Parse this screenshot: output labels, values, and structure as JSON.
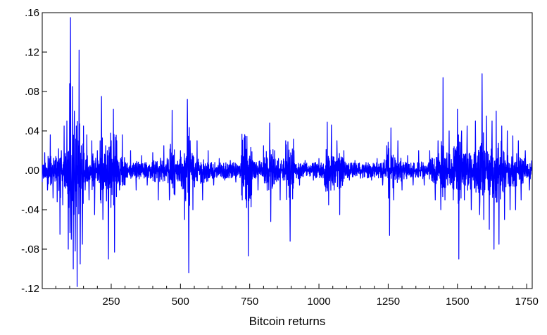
{
  "chart_data": {
    "type": "line",
    "title": "",
    "xlabel": "Bitcoin returns",
    "ylabel": "",
    "xlim": [
      1,
      1770
    ],
    "ylim": [
      -0.12,
      0.16
    ],
    "x_ticks": [
      250,
      500,
      750,
      1000,
      1250,
      1500,
      1750
    ],
    "x_tick_labels": [
      "250",
      "500",
      "750",
      "1000",
      "1250",
      "1500",
      "1750"
    ],
    "y_ticks": [
      -0.12,
      -0.08,
      -0.04,
      0.0,
      0.04,
      0.08,
      0.12,
      0.16
    ],
    "y_tick_labels": [
      "-.12",
      "-.08",
      "-.04",
      ".00",
      ".04",
      ".08",
      ".12",
      ".16"
    ],
    "grid": false,
    "legend": "none",
    "series": [
      {
        "color": "#0000ff",
        "points": [
          [
            1,
            -0.012
          ],
          [
            10,
            0.018
          ],
          [
            20,
            -0.02
          ],
          [
            30,
            0.036
          ],
          [
            40,
            -0.028
          ],
          [
            50,
            0.014
          ],
          [
            55,
            -0.032
          ],
          [
            60,
            0.022
          ],
          [
            65,
            -0.065
          ],
          [
            70,
            0.02
          ],
          [
            75,
            -0.035
          ],
          [
            80,
            0.045
          ],
          [
            85,
            -0.018
          ],
          [
            90,
            0.05
          ],
          [
            95,
            -0.08
          ],
          [
            100,
            0.088
          ],
          [
            103,
            0.155
          ],
          [
            106,
            -0.07
          ],
          [
            110,
            0.085
          ],
          [
            113,
            -0.1
          ],
          [
            117,
            0.06
          ],
          [
            120,
            -0.082
          ],
          [
            124,
            0.045
          ],
          [
            127,
            -0.118
          ],
          [
            130,
            0.03
          ],
          [
            134,
            0.122
          ],
          [
            138,
            -0.095
          ],
          [
            142,
            0.025
          ],
          [
            146,
            -0.075
          ],
          [
            150,
            0.045
          ],
          [
            156,
            -0.02
          ],
          [
            162,
            0.036
          ],
          [
            170,
            -0.03
          ],
          [
            180,
            0.03
          ],
          [
            190,
            -0.045
          ],
          [
            200,
            0.02
          ],
          [
            210,
            0.03
          ],
          [
            215,
            0.075
          ],
          [
            220,
            -0.05
          ],
          [
            230,
            0.025
          ],
          [
            240,
            -0.09
          ],
          [
            250,
            0.03
          ],
          [
            258,
            0.062
          ],
          [
            262,
            -0.083
          ],
          [
            270,
            0.03
          ],
          [
            280,
            -0.02
          ],
          [
            290,
            0.036
          ],
          [
            300,
            -0.015
          ],
          [
            320,
            0.02
          ],
          [
            340,
            -0.02
          ],
          [
            360,
            0.015
          ],
          [
            380,
            -0.015
          ],
          [
            400,
            0.018
          ],
          [
            420,
            -0.03
          ],
          [
            440,
            0.025
          ],
          [
            460,
            -0.03
          ],
          [
            470,
            0.061
          ],
          [
            480,
            -0.025
          ],
          [
            500,
            0.02
          ],
          [
            515,
            -0.05
          ],
          [
            525,
            0.072
          ],
          [
            530,
            -0.104
          ],
          [
            535,
            0.03
          ],
          [
            545,
            -0.04
          ],
          [
            560,
            0.03
          ],
          [
            580,
            -0.03
          ],
          [
            600,
            0.02
          ],
          [
            620,
            -0.015
          ],
          [
            640,
            0.012
          ],
          [
            660,
            -0.01
          ],
          [
            680,
            0.01
          ],
          [
            700,
            -0.012
          ],
          [
            720,
            0.015
          ],
          [
            745,
            -0.087
          ],
          [
            760,
            0.01
          ],
          [
            780,
            -0.02
          ],
          [
            800,
            0.025
          ],
          [
            822,
            0.048
          ],
          [
            826,
            -0.052
          ],
          [
            840,
            0.02
          ],
          [
            860,
            -0.03
          ],
          [
            880,
            0.03
          ],
          [
            896,
            -0.072
          ],
          [
            910,
            0.02
          ],
          [
            930,
            -0.015
          ],
          [
            950,
            0.01
          ],
          [
            980,
            -0.01
          ],
          [
            1000,
            0.012
          ],
          [
            1020,
            -0.015
          ],
          [
            1030,
            0.049
          ],
          [
            1035,
            -0.035
          ],
          [
            1045,
            0.046
          ],
          [
            1055,
            -0.02
          ],
          [
            1065,
            0.03
          ],
          [
            1075,
            -0.045
          ],
          [
            1090,
            0.02
          ],
          [
            1110,
            -0.01
          ],
          [
            1130,
            0.01
          ],
          [
            1150,
            -0.008
          ],
          [
            1170,
            0.008
          ],
          [
            1190,
            -0.01
          ],
          [
            1210,
            0.012
          ],
          [
            1230,
            -0.015
          ],
          [
            1245,
            0.025
          ],
          [
            1255,
            -0.066
          ],
          [
            1260,
            0.043
          ],
          [
            1270,
            -0.03
          ],
          [
            1285,
            0.03
          ],
          [
            1300,
            -0.02
          ],
          [
            1320,
            0.015
          ],
          [
            1340,
            -0.015
          ],
          [
            1360,
            0.02
          ],
          [
            1380,
            -0.015
          ],
          [
            1400,
            0.02
          ],
          [
            1420,
            -0.03
          ],
          [
            1430,
            0.03
          ],
          [
            1440,
            -0.04
          ],
          [
            1448,
            0.094
          ],
          [
            1455,
            -0.03
          ],
          [
            1470,
            0.04
          ],
          [
            1485,
            -0.03
          ],
          [
            1500,
            0.062
          ],
          [
            1505,
            -0.09
          ],
          [
            1515,
            0.04
          ],
          [
            1525,
            -0.03
          ],
          [
            1535,
            0.045
          ],
          [
            1550,
            -0.04
          ],
          [
            1565,
            0.05
          ],
          [
            1580,
            -0.045
          ],
          [
            1589,
            0.098
          ],
          [
            1595,
            -0.05
          ],
          [
            1605,
            0.055
          ],
          [
            1615,
            -0.06
          ],
          [
            1625,
            0.05
          ],
          [
            1632,
            -0.08
          ],
          [
            1640,
            0.06
          ],
          [
            1650,
            -0.075
          ],
          [
            1660,
            0.045
          ],
          [
            1670,
            -0.05
          ],
          [
            1680,
            0.04
          ],
          [
            1690,
            -0.04
          ],
          [
            1700,
            0.035
          ],
          [
            1710,
            -0.04
          ],
          [
            1720,
            0.03
          ],
          [
            1730,
            -0.03
          ],
          [
            1745,
            0.02
          ],
          [
            1760,
            -0.02
          ],
          [
            1768,
            0.01
          ]
        ]
      }
    ]
  }
}
